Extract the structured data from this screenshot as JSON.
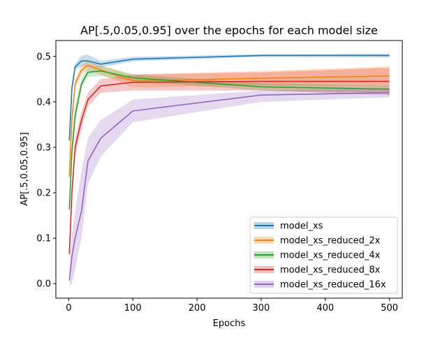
{
  "chart_data": {
    "type": "line",
    "title": "AP[.5,0.05,0.95] over the epochs for each model size",
    "xlabel": "Epochs",
    "ylabel": "AP[.5,0.05,0.95]",
    "xlim": [
      -20,
      520
    ],
    "ylim": [
      -0.032,
      0.535
    ],
    "xticks": [
      0,
      100,
      200,
      300,
      400,
      500
    ],
    "yticks": [
      0.0,
      0.1,
      0.2,
      0.3,
      0.4,
      0.5
    ],
    "xtick_labels": [
      "0",
      "100",
      "200",
      "300",
      "400",
      "500"
    ],
    "ytick_labels": [
      "0.0",
      "0.1",
      "0.2",
      "0.3",
      "0.4",
      "0.5"
    ],
    "grid": false,
    "legend_position": "lower-right",
    "x": [
      1,
      5,
      10,
      20,
      30,
      50,
      100,
      300,
      500
    ],
    "series": [
      {
        "name": "model_xs",
        "color": "#1f77b4",
        "values": [
          0.315,
          0.43,
          0.477,
          0.49,
          0.49,
          0.483,
          0.494,
          0.502,
          0.502
        ],
        "lower": [
          0.305,
          0.42,
          0.47,
          0.478,
          0.476,
          0.476,
          0.489,
          0.499,
          0.498
        ],
        "upper": [
          0.325,
          0.44,
          0.484,
          0.502,
          0.504,
          0.49,
          0.499,
          0.505,
          0.506
        ]
      },
      {
        "name": "model_xs_reduced_2x",
        "color": "#ff7f0e",
        "values": [
          0.235,
          0.36,
          0.44,
          0.47,
          0.48,
          0.47,
          0.446,
          0.452,
          0.457
        ],
        "lower": [
          0.225,
          0.35,
          0.43,
          0.46,
          0.47,
          0.46,
          0.432,
          0.436,
          0.436
        ],
        "upper": [
          0.245,
          0.37,
          0.45,
          0.48,
          0.49,
          0.48,
          0.46,
          0.468,
          0.478
        ]
      },
      {
        "name": "model_xs_reduced_4x",
        "color": "#2ca02c",
        "values": [
          0.163,
          0.29,
          0.37,
          0.44,
          0.465,
          0.468,
          0.453,
          0.433,
          0.428
        ],
        "lower": [
          0.153,
          0.27,
          0.35,
          0.43,
          0.455,
          0.457,
          0.446,
          0.425,
          0.42
        ],
        "upper": [
          0.173,
          0.31,
          0.39,
          0.45,
          0.475,
          0.479,
          0.46,
          0.441,
          0.436
        ]
      },
      {
        "name": "model_xs_reduced_8x",
        "color": "#d62728",
        "values": [
          0.065,
          0.2,
          0.3,
          0.36,
          0.405,
          0.435,
          0.443,
          0.445,
          0.445
        ],
        "lower": [
          0.06,
          0.19,
          0.28,
          0.34,
          0.39,
          0.42,
          0.425,
          0.425,
          0.415
        ],
        "upper": [
          0.07,
          0.21,
          0.32,
          0.38,
          0.42,
          0.45,
          0.46,
          0.465,
          0.475
        ]
      },
      {
        "name": "model_xs_reduced_16x",
        "color": "#9467bd",
        "values": [
          0.007,
          0.06,
          0.1,
          0.16,
          0.27,
          0.32,
          0.38,
          0.415,
          0.42
        ],
        "lower": [
          -0.005,
          0.0,
          0.03,
          0.1,
          0.22,
          0.28,
          0.355,
          0.4,
          0.41
        ],
        "upper": [
          0.02,
          0.11,
          0.16,
          0.25,
          0.32,
          0.36,
          0.405,
          0.425,
          0.43
        ]
      }
    ]
  }
}
